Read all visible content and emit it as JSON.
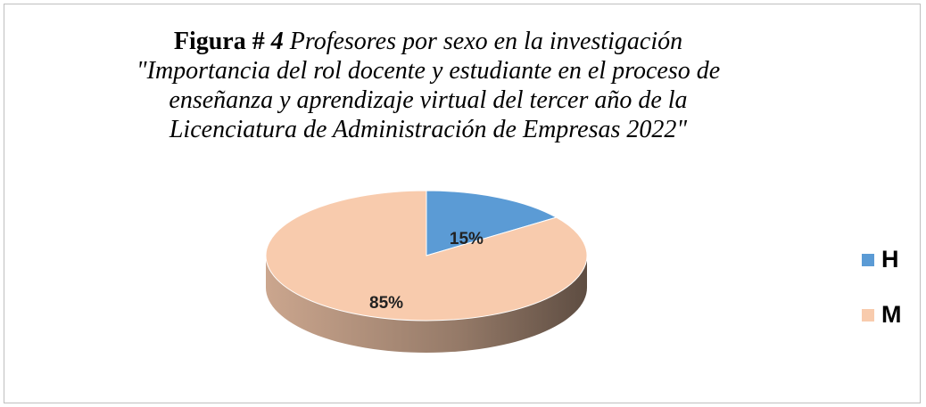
{
  "chart_data": {
    "type": "pie",
    "figure_label": "Figura #",
    "figure_number": 4,
    "title": "Profesores por sexo en la investigación \"Importancia del rol docente y estudiante en el proceso de enseñanza y aprendizaje virtual del tercer año de la Licenciatura de Administración de Empresas 2022\"",
    "categories": [
      "H",
      "M"
    ],
    "values": [
      15,
      85
    ],
    "value_labels": [
      "15%",
      "85%"
    ],
    "colors": [
      "#5b9bd5",
      "#f8cbad"
    ],
    "legend": "right",
    "three_d": true
  }
}
